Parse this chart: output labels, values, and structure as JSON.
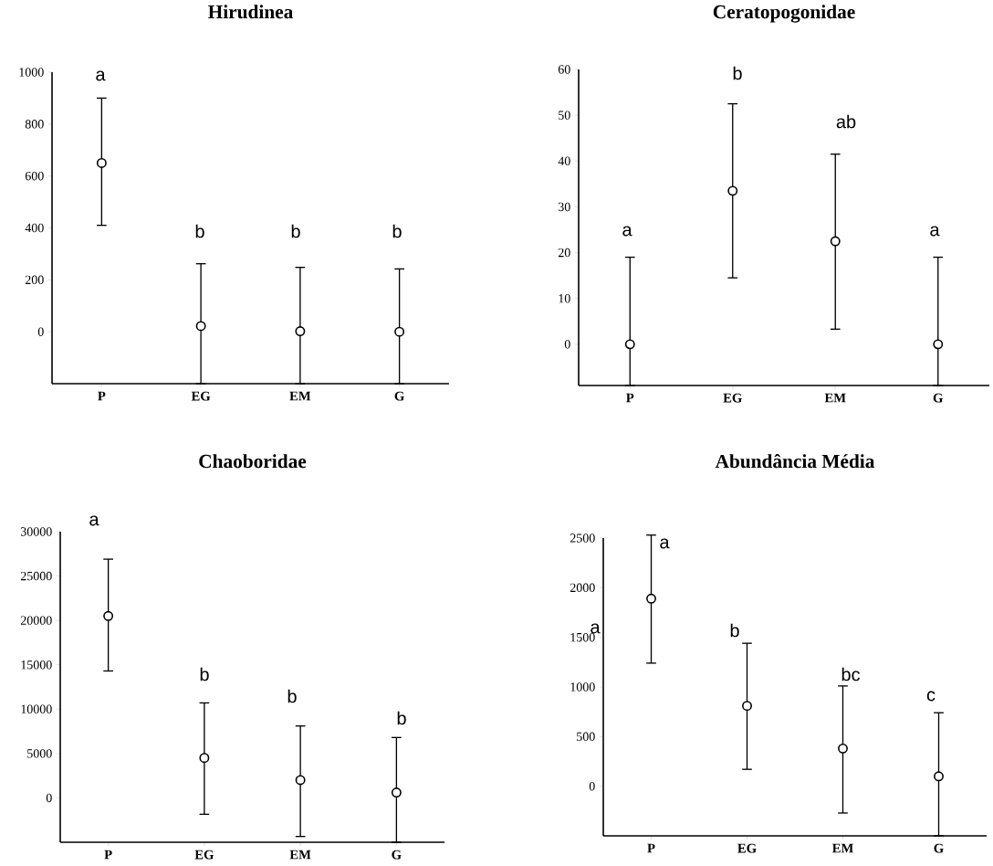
{
  "chart_data": [
    {
      "type": "scatter",
      "title": "Hirudinea",
      "categories": [
        "P",
        "EG",
        "EM",
        "G"
      ],
      "values": [
        650,
        22,
        2,
        0
      ],
      "errors": [
        [
          410,
          900
        ],
        [
          -200,
          262
        ],
        [
          -200,
          248
        ],
        [
          -200,
          242
        ]
      ],
      "color": "#000000",
      "marker": "circle",
      "ylim": [
        -200,
        1000
      ],
      "yticks": [
        0,
        200,
        400,
        600,
        800,
        1000
      ],
      "annotations": [
        "a",
        "b",
        "b",
        "b"
      ]
    },
    {
      "type": "scatter",
      "title": "Ceratopogonidae",
      "categories": [
        "P",
        "EG",
        "EM",
        "G"
      ],
      "values": [
        0,
        33.5,
        22.5,
        0
      ],
      "errors": [
        [
          -9,
          19
        ],
        [
          14.5,
          52.5
        ],
        [
          3.3,
          41.5
        ],
        [
          -9,
          19
        ]
      ],
      "color": "#000000",
      "marker": "circle",
      "ylim": [
        -9,
        60
      ],
      "yticks": [
        0,
        10,
        20,
        30,
        40,
        50,
        60
      ],
      "annotations": [
        "a",
        "b",
        "ab",
        "a"
      ]
    },
    {
      "type": "scatter",
      "title": "Chaoboridae",
      "categories": [
        "P",
        "EG",
        "EM",
        "G"
      ],
      "values": [
        20500,
        4500,
        2000,
        600
      ],
      "errors": [
        [
          14300,
          26900
        ],
        [
          -1850,
          10700
        ],
        [
          -4350,
          8100
        ],
        [
          -5000,
          6800
        ]
      ],
      "color": "#000000",
      "marker": "circle",
      "ylim": [
        -5000,
        30000
      ],
      "yticks": [
        0,
        5000,
        10000,
        15000,
        20000,
        25000,
        30000
      ],
      "annotations": [
        "a",
        "b",
        "b",
        "b"
      ]
    },
    {
      "type": "scatter",
      "title": "Abundância Média",
      "categories": [
        "P",
        "EG",
        "EM",
        "G"
      ],
      "values": [
        1890,
        810,
        380,
        100
      ],
      "errors": [
        [
          1240,
          2530
        ],
        [
          170,
          1440
        ],
        [
          -270,
          1010
        ],
        [
          -500,
          740
        ]
      ],
      "color": "#000000",
      "marker": "circle",
      "ylim": [
        -500,
        2500
      ],
      "yticks": [
        0,
        500,
        1000,
        1500,
        2000,
        2500
      ],
      "annotations": [
        "a",
        "a",
        "b",
        "bc",
        "c"
      ]
    }
  ]
}
